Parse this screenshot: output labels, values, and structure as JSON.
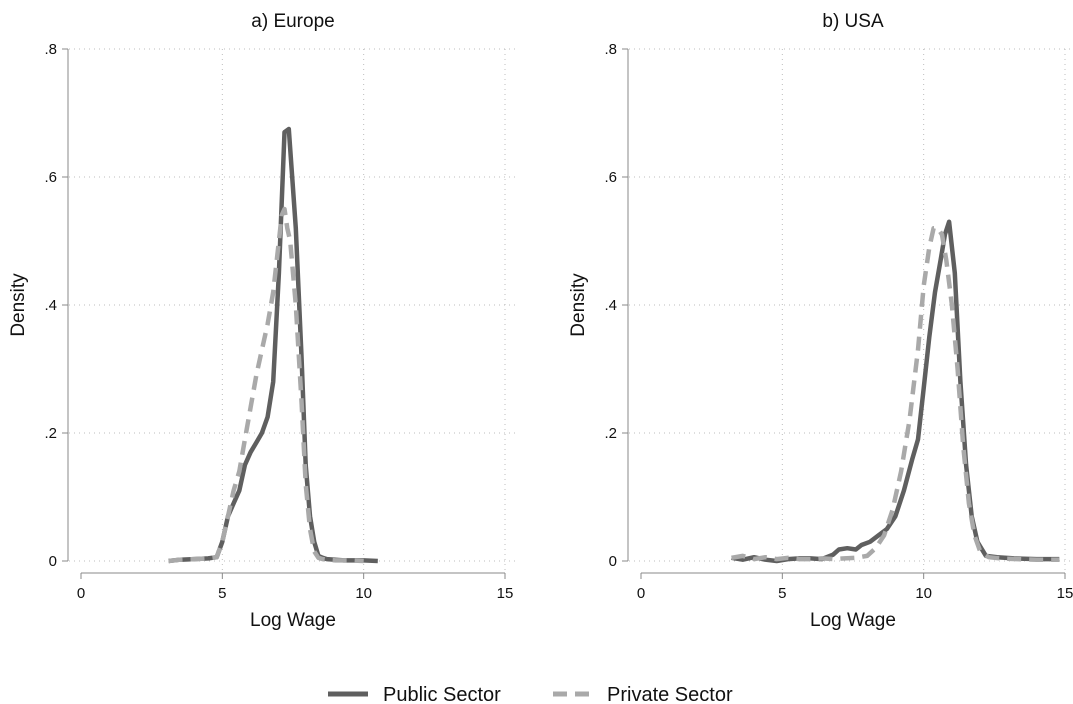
{
  "chart_data": [
    {
      "type": "line",
      "title": "a) Europe",
      "xlabel": "Log Wage",
      "ylabel": "Density",
      "xlim": [
        0,
        15
      ],
      "ylim": [
        0,
        0.8
      ],
      "xticks": [
        0,
        5,
        10,
        15
      ],
      "xtick_labels": [
        "0",
        "5",
        "10",
        "15"
      ],
      "yticks": [
        0,
        0.2,
        0.4,
        0.6,
        0.8
      ],
      "ytick_labels": [
        "0",
        ".2",
        ".4",
        ".6",
        ".8"
      ],
      "grid": true,
      "series": [
        {
          "name": "Public Sector",
          "color": "#5f5f5f",
          "style": "solid",
          "x": [
            3.1,
            3.5,
            4.0,
            4.5,
            4.8,
            5.0,
            5.2,
            5.4,
            5.6,
            5.8,
            6.0,
            6.2,
            6.4,
            6.6,
            6.8,
            7.0,
            7.2,
            7.35,
            7.6,
            7.8,
            7.95,
            8.1,
            8.25,
            8.4,
            8.55,
            8.7,
            9.0,
            9.3,
            9.6,
            10.0,
            10.5
          ],
          "y": [
            0.0,
            0.002,
            0.003,
            0.004,
            0.006,
            0.03,
            0.07,
            0.09,
            0.11,
            0.15,
            0.17,
            0.185,
            0.2,
            0.225,
            0.28,
            0.45,
            0.67,
            0.675,
            0.52,
            0.32,
            0.15,
            0.07,
            0.03,
            0.008,
            0.005,
            0.003,
            0.002,
            0.001,
            0.001,
            0.001,
            0.0
          ]
        },
        {
          "name": "Private Sector",
          "color": "#a9a9a9",
          "style": "dashed",
          "x": [
            3.1,
            3.5,
            4.0,
            4.5,
            4.8,
            5.0,
            5.2,
            5.4,
            5.6,
            5.8,
            6.0,
            6.2,
            6.4,
            6.6,
            6.8,
            7.0,
            7.1,
            7.2,
            7.3,
            7.4,
            7.6,
            7.8,
            7.95,
            8.1,
            8.25,
            8.4,
            8.55,
            8.7,
            9.0,
            9.5,
            10.0
          ],
          "y": [
            0.0,
            0.002,
            0.003,
            0.004,
            0.006,
            0.03,
            0.07,
            0.11,
            0.14,
            0.19,
            0.24,
            0.29,
            0.33,
            0.37,
            0.42,
            0.5,
            0.54,
            0.55,
            0.52,
            0.5,
            0.4,
            0.25,
            0.12,
            0.05,
            0.015,
            0.005,
            0.003,
            0.002,
            0.001,
            0.001,
            0.0
          ]
        }
      ]
    },
    {
      "type": "line",
      "title": "b) USA",
      "xlabel": "Log Wage",
      "ylabel": "Density",
      "xlim": [
        0,
        15
      ],
      "ylim": [
        0,
        0.8
      ],
      "xticks": [
        0,
        5,
        10,
        15
      ],
      "xtick_labels": [
        "0",
        "5",
        "10",
        "15"
      ],
      "yticks": [
        0,
        0.2,
        0.4,
        0.6,
        0.8
      ],
      "ytick_labels": [
        "0",
        ".2",
        ".4",
        ".6",
        ".8"
      ],
      "grid": true,
      "series": [
        {
          "name": "Public Sector",
          "color": "#5f5f5f",
          "style": "solid",
          "x": [
            3.2,
            3.6,
            4.0,
            4.4,
            4.8,
            5.2,
            5.6,
            6.0,
            6.4,
            6.8,
            7.0,
            7.3,
            7.6,
            7.8,
            8.1,
            8.4,
            8.7,
            9.0,
            9.3,
            9.6,
            9.8,
            10.0,
            10.2,
            10.4,
            10.6,
            10.75,
            10.9,
            11.1,
            11.3,
            11.5,
            11.7,
            11.9,
            12.2,
            12.6,
            13.2,
            14.0,
            14.8
          ],
          "y": [
            0.005,
            0.002,
            0.006,
            0.002,
            0.0,
            0.003,
            0.004,
            0.004,
            0.003,
            0.01,
            0.018,
            0.02,
            0.018,
            0.025,
            0.03,
            0.04,
            0.05,
            0.07,
            0.11,
            0.16,
            0.19,
            0.27,
            0.35,
            0.42,
            0.47,
            0.51,
            0.53,
            0.45,
            0.28,
            0.15,
            0.07,
            0.03,
            0.008,
            0.006,
            0.004,
            0.003,
            0.003
          ]
        },
        {
          "name": "Private Sector",
          "color": "#a9a9a9",
          "style": "dashed",
          "x": [
            3.2,
            3.6,
            4.0,
            4.4,
            4.8,
            5.2,
            5.6,
            6.0,
            6.4,
            6.8,
            7.2,
            7.6,
            8.0,
            8.3,
            8.6,
            8.9,
            9.2,
            9.5,
            9.8,
            10.0,
            10.2,
            10.35,
            10.5,
            10.65,
            10.8,
            11.0,
            11.2,
            11.4,
            11.6,
            11.8,
            12.0,
            12.3,
            12.7,
            13.3,
            14.0,
            14.8
          ],
          "y": [
            0.005,
            0.008,
            0.003,
            0.006,
            0.003,
            0.005,
            0.003,
            0.003,
            0.004,
            0.003,
            0.004,
            0.005,
            0.008,
            0.02,
            0.04,
            0.08,
            0.14,
            0.22,
            0.33,
            0.43,
            0.49,
            0.52,
            0.52,
            0.51,
            0.47,
            0.4,
            0.3,
            0.18,
            0.09,
            0.04,
            0.015,
            0.006,
            0.004,
            0.003,
            0.002,
            0.002
          ]
        }
      ]
    }
  ],
  "legend": {
    "items": [
      {
        "label": "Public Sector",
        "color": "#5f5f5f",
        "style": "solid"
      },
      {
        "label": "Private Sector",
        "color": "#a9a9a9",
        "style": "dashed"
      }
    ],
    "position": "bottom-center"
  }
}
